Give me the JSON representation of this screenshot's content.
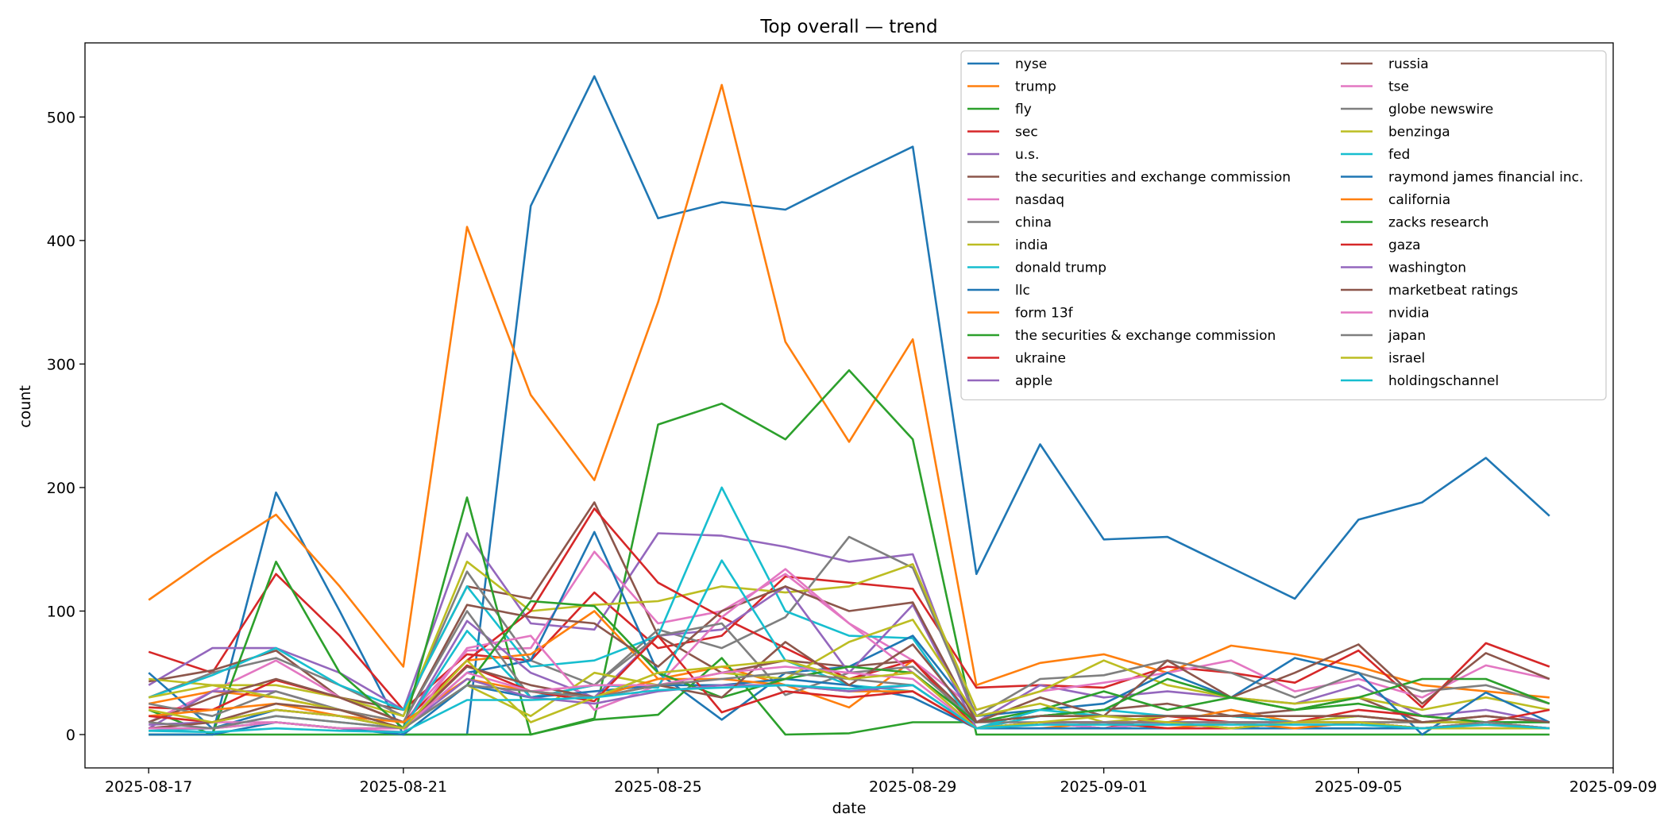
{
  "chart_data": {
    "type": "line",
    "title": "Top overall — trend",
    "xlabel": "date",
    "ylabel": "count",
    "x": [
      "2025-08-17",
      "2025-08-18",
      "2025-08-19",
      "2025-08-20",
      "2025-08-21",
      "2025-08-22",
      "2025-08-23",
      "2025-08-24",
      "2025-08-25",
      "2025-08-26",
      "2025-08-27",
      "2025-08-28",
      "2025-08-29",
      "2025-08-30",
      "2025-08-31",
      "2025-09-01",
      "2025-09-02",
      "2025-09-03",
      "2025-09-04",
      "2025-09-05",
      "2025-09-06",
      "2025-09-07",
      "2025-09-08"
    ],
    "x_ticks": [
      "2025-08-17",
      "2025-08-21",
      "2025-08-25",
      "2025-08-29",
      "2025-09-01",
      "2025-09-05",
      "2025-09-09"
    ],
    "xlim": [
      "2025-08-16",
      "2025-09-09"
    ],
    "ylim": [
      -27,
      560
    ],
    "y_ticks": [
      0,
      100,
      200,
      300,
      400,
      500
    ],
    "grid": false,
    "legend_position": "top-right",
    "series": [
      {
        "name": "nyse",
        "color": "#1f77b4",
        "values": [
          0,
          0,
          196,
          100,
          0,
          0,
          428,
          533,
          418,
          431,
          425,
          451,
          476,
          130,
          235,
          158,
          160,
          135,
          110,
          174,
          188,
          224,
          177
        ]
      },
      {
        "name": "trump",
        "color": "#ff7f0e",
        "values": [
          109,
          145,
          178,
          120,
          55,
          411,
          275,
          206,
          350,
          526,
          318,
          237,
          320,
          40,
          58,
          65,
          50,
          72,
          65,
          55,
          40,
          35,
          30
        ]
      },
      {
        "name": "fly",
        "color": "#2ca02c",
        "values": [
          0,
          0,
          0,
          0,
          0,
          0,
          0,
          13,
          251,
          268,
          239,
          295,
          239,
          0,
          0,
          0,
          0,
          0,
          0,
          0,
          0,
          0,
          0
        ]
      },
      {
        "name": "sec",
        "color": "#d62728",
        "values": [
          67,
          50,
          130,
          80,
          20,
          65,
          60,
          115,
          70,
          80,
          128,
          123,
          118,
          38,
          40,
          38,
          55,
          50,
          42,
          68,
          22,
          74,
          55
        ]
      },
      {
        "name": "u.s.",
        "color": "#9467bd",
        "values": [
          40,
          70,
          70,
          50,
          20,
          163,
          90,
          85,
          163,
          161,
          152,
          140,
          146,
          10,
          40,
          30,
          35,
          30,
          25,
          40,
          15,
          20,
          10
        ]
      },
      {
        "name": "the securities and exchange commission",
        "color": "#8c564b",
        "values": [
          43,
          52,
          68,
          30,
          20,
          120,
          110,
          188,
          80,
          50,
          60,
          55,
          60,
          10,
          15,
          20,
          25,
          15,
          20,
          30,
          10,
          15,
          10
        ]
      },
      {
        "name": "nasdaq",
        "color": "#e377c2",
        "values": [
          10,
          35,
          60,
          30,
          10,
          68,
          70,
          148,
          90,
          100,
          130,
          90,
          60,
          20,
          35,
          42,
          50,
          60,
          35,
          45,
          30,
          56,
          45
        ]
      },
      {
        "name": "china",
        "color": "#7f7f7f",
        "values": [
          30,
          50,
          62,
          40,
          15,
          132,
          60,
          40,
          85,
          70,
          95,
          160,
          135,
          15,
          45,
          48,
          60,
          50,
          30,
          50,
          35,
          40,
          25
        ]
      },
      {
        "name": "india",
        "color": "#bcbd22",
        "values": [
          45,
          40,
          40,
          30,
          15,
          140,
          100,
          105,
          108,
          120,
          115,
          120,
          138,
          20,
          35,
          60,
          40,
          30,
          25,
          30,
          20,
          30,
          20
        ]
      },
      {
        "name": "donald trump",
        "color": "#17becf",
        "values": [
          30,
          48,
          70,
          40,
          20,
          120,
          55,
          60,
          80,
          200,
          100,
          80,
          78,
          5,
          15,
          20,
          15,
          15,
          10,
          15,
          10,
          10,
          5
        ]
      },
      {
        "name": "llc",
        "color": "#1f77b4",
        "values": [
          50,
          5,
          20,
          15,
          5,
          50,
          60,
          164,
          50,
          12,
          50,
          55,
          80,
          15,
          20,
          25,
          50,
          30,
          62,
          50,
          0,
          34,
          10
        ]
      },
      {
        "name": "form 13f",
        "color": "#ff7f0e",
        "values": [
          25,
          35,
          30,
          20,
          10,
          60,
          65,
          100,
          45,
          55,
          40,
          22,
          60,
          5,
          5,
          10,
          10,
          20,
          10,
          10,
          10,
          10,
          10
        ]
      },
      {
        "name": "the securities & exchange commission",
        "color": "#2ca02c",
        "values": [
          20,
          0,
          140,
          50,
          5,
          192,
          0,
          12,
          16,
          62,
          0,
          1,
          10,
          10,
          20,
          35,
          20,
          30,
          20,
          30,
          45,
          45,
          25
        ]
      },
      {
        "name": "ukraine",
        "color": "#d62728",
        "values": [
          22,
          20,
          44,
          30,
          10,
          60,
          100,
          183,
          123,
          95,
          70,
          45,
          60,
          5,
          10,
          5,
          15,
          10,
          10,
          20,
          15,
          10,
          20
        ]
      },
      {
        "name": "apple",
        "color": "#9467bd",
        "values": [
          5,
          35,
          35,
          20,
          5,
          92,
          50,
          30,
          80,
          85,
          120,
          50,
          105,
          5,
          5,
          5,
          10,
          5,
          10,
          10,
          5,
          10,
          5
        ]
      },
      {
        "name": "russia",
        "color": "#8c564b",
        "values": [
          10,
          30,
          45,
          30,
          10,
          105,
          95,
          90,
          55,
          100,
          120,
          100,
          107,
          10,
          30,
          15,
          60,
          30,
          50,
          73,
          25,
          66,
          45
        ]
      },
      {
        "name": "tse",
        "color": "#e377c2",
        "values": [
          5,
          10,
          10,
          5,
          2,
          70,
          80,
          20,
          40,
          95,
          134,
          90,
          50,
          5,
          10,
          5,
          10,
          5,
          5,
          10,
          5,
          5,
          5
        ]
      },
      {
        "name": "globe newswire",
        "color": "#7f7f7f",
        "values": [
          25,
          15,
          35,
          20,
          10,
          100,
          30,
          40,
          80,
          90,
          32,
          50,
          55,
          10,
          10,
          10,
          10,
          10,
          10,
          10,
          10,
          10,
          10
        ]
      },
      {
        "name": "benzinga",
        "color": "#bcbd22",
        "values": [
          30,
          40,
          30,
          20,
          5,
          40,
          15,
          50,
          40,
          50,
          45,
          75,
          93,
          15,
          25,
          10,
          15,
          15,
          10,
          15,
          10,
          10,
          10
        ]
      },
      {
        "name": "fed",
        "color": "#17becf",
        "values": [
          3,
          5,
          15,
          10,
          5,
          84,
          30,
          40,
          38,
          141,
          60,
          40,
          35,
          5,
          20,
          15,
          15,
          15,
          10,
          10,
          5,
          10,
          10
        ]
      },
      {
        "name": "raymond james financial inc.",
        "color": "#1f77b4",
        "values": [
          0,
          0,
          10,
          5,
          0,
          40,
          30,
          35,
          40,
          40,
          45,
          40,
          30,
          5,
          5,
          5,
          5,
          5,
          5,
          5,
          5,
          5,
          5
        ]
      },
      {
        "name": "california",
        "color": "#ff7f0e",
        "values": [
          15,
          20,
          25,
          15,
          10,
          45,
          35,
          30,
          45,
          45,
          40,
          35,
          35,
          5,
          10,
          10,
          5,
          10,
          5,
          10,
          5,
          10,
          5
        ]
      },
      {
        "name": "zacks research",
        "color": "#2ca02c",
        "values": [
          5,
          5,
          10,
          5,
          5,
          40,
          108,
          104,
          50,
          30,
          45,
          55,
          50,
          10,
          15,
          20,
          45,
          30,
          20,
          25,
          15,
          10,
          10
        ]
      },
      {
        "name": "gaza",
        "color": "#d62728",
        "values": [
          15,
          10,
          20,
          15,
          5,
          56,
          35,
          27,
          80,
          18,
          35,
          30,
          35,
          5,
          10,
          10,
          5,
          5,
          10,
          10,
          5,
          5,
          5
        ]
      },
      {
        "name": "washington",
        "color": "#9467bd",
        "values": [
          8,
          10,
          20,
          15,
          5,
          45,
          30,
          25,
          35,
          40,
          40,
          35,
          40,
          5,
          10,
          10,
          10,
          10,
          10,
          10,
          5,
          10,
          5
        ]
      },
      {
        "name": "marketbeat ratings",
        "color": "#8c564b",
        "values": [
          5,
          10,
          25,
          20,
          5,
          55,
          40,
          30,
          40,
          30,
          75,
          40,
          73,
          10,
          15,
          15,
          15,
          15,
          15,
          15,
          10,
          15,
          10
        ]
      },
      {
        "name": "nvidia",
        "color": "#e377c2",
        "values": [
          5,
          5,
          10,
          5,
          5,
          50,
          35,
          40,
          40,
          50,
          55,
          50,
          45,
          5,
          10,
          10,
          10,
          10,
          10,
          10,
          5,
          10,
          5
        ]
      },
      {
        "name": "japan",
        "color": "#7f7f7f",
        "values": [
          10,
          5,
          15,
          10,
          5,
          40,
          35,
          30,
          40,
          45,
          50,
          45,
          40,
          5,
          10,
          10,
          10,
          10,
          10,
          10,
          5,
          10,
          5
        ]
      },
      {
        "name": "israel",
        "color": "#bcbd22",
        "values": [
          20,
          10,
          20,
          15,
          5,
          60,
          10,
          30,
          50,
          55,
          60,
          45,
          50,
          5,
          10,
          15,
          10,
          5,
          10,
          10,
          5,
          5,
          5
        ]
      },
      {
        "name": "holdingschannel",
        "color": "#17becf",
        "values": [
          3,
          2,
          5,
          3,
          2,
          28,
          28,
          30,
          36,
          38,
          40,
          37,
          40,
          5,
          8,
          8,
          8,
          8,
          8,
          8,
          5,
          8,
          5
        ]
      }
    ]
  }
}
